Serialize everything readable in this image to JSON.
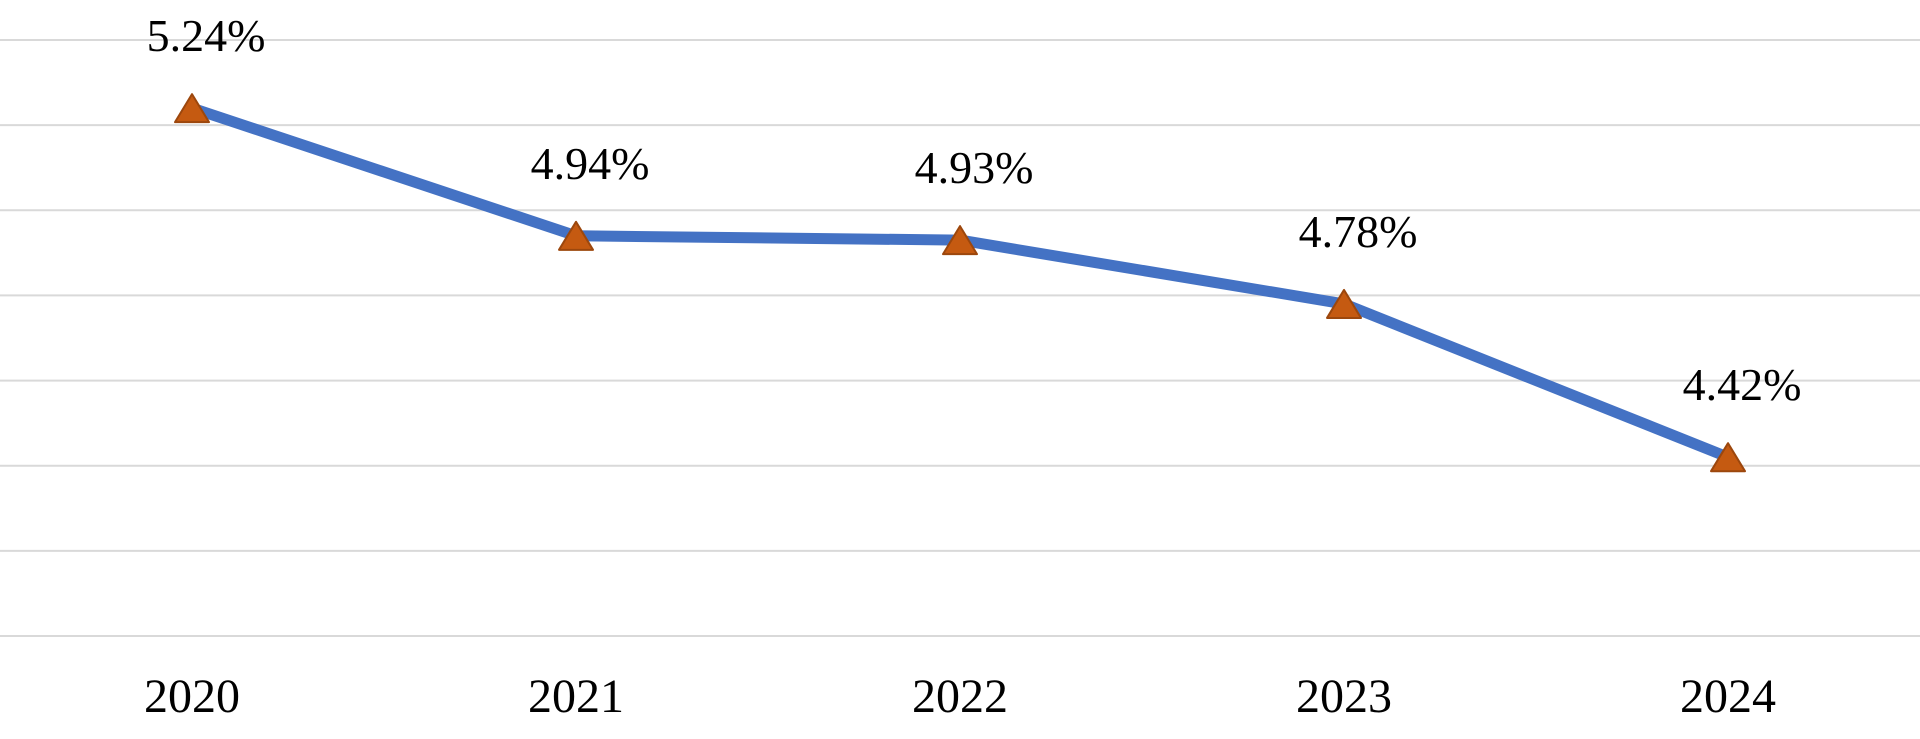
{
  "chart_data": {
    "type": "line",
    "title": "",
    "xlabel": "",
    "ylabel": "",
    "categories": [
      "2020",
      "2021",
      "2022",
      "2023",
      "2024"
    ],
    "series": [
      {
        "name": "",
        "values": [
          5.24,
          4.94,
          4.93,
          4.78,
          4.42
        ],
        "data_labels": [
          "5.24%",
          "4.94%",
          "4.93%",
          "4.78%",
          "4.42%"
        ]
      }
    ],
    "ylim": [
      4.0,
      5.4
    ],
    "grid_step": 0.2,
    "grid": true,
    "legend_position": "none",
    "marker_shape": "triangle",
    "colors": {
      "line": "#4472C4",
      "marker_fill": "#C55A11",
      "marker_edge": "#9C470D",
      "grid": "#D9D9D9",
      "label": "#000000",
      "background": "#FFFFFF"
    }
  }
}
